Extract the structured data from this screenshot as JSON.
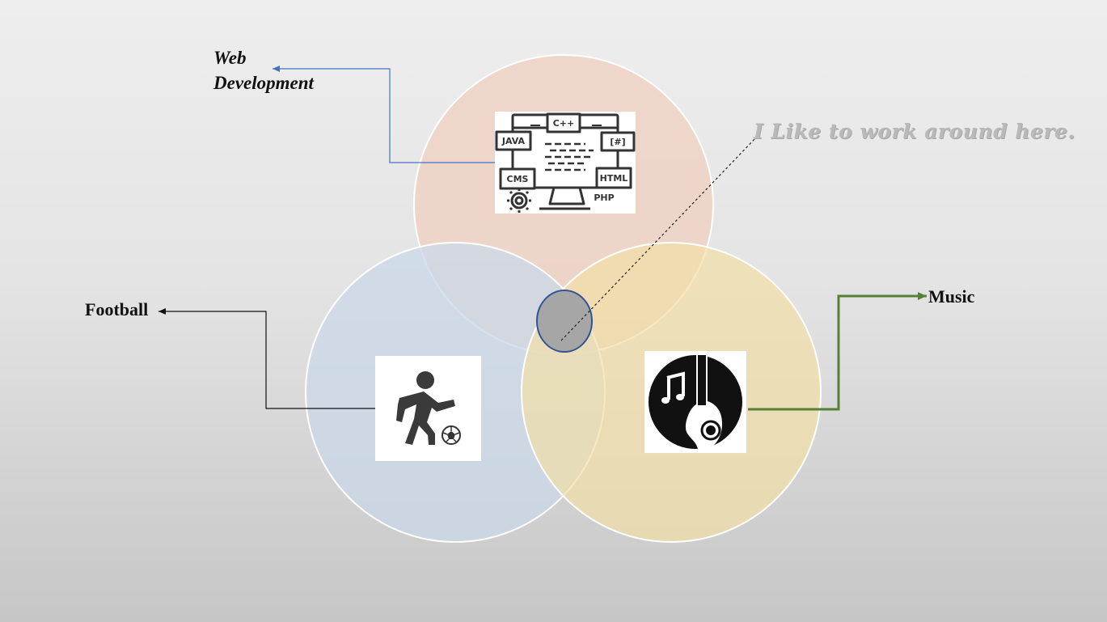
{
  "labels": {
    "web_line1": "Web",
    "web_line2": "Development",
    "football": "Football",
    "music": "Music",
    "note": "I Like to work around here."
  },
  "web_icon_text": {
    "cpp": "C++",
    "java": "JAVA",
    "csharp": "[#]",
    "cms": "CMS",
    "html": "HTML",
    "php": "PHP"
  },
  "colors": {
    "circle_web": "#f0cfbf",
    "circle_football": "#c9d8e8",
    "circle_music": "#f2dea6",
    "center": "#a6a6a6",
    "center_border": "#2f5597",
    "arrow_web": "#4472c4",
    "arrow_music": "#548235"
  },
  "icons": [
    "web-development-icon",
    "football-player-icon",
    "music-guitar-icon"
  ]
}
